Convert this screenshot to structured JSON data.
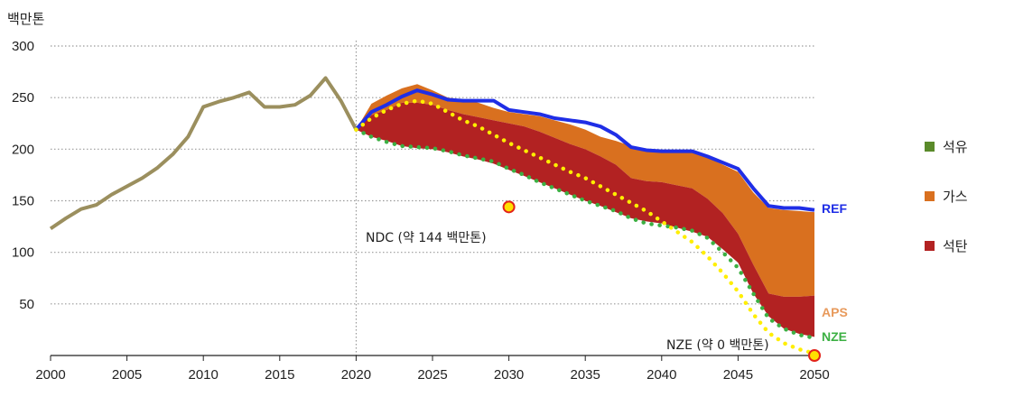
{
  "chart_data": {
    "type": "area",
    "ylabel": "백만톤",
    "xlim": [
      2000,
      2050
    ],
    "ylim": [
      0,
      300
    ],
    "x_ticks": [
      2000,
      2005,
      2010,
      2015,
      2020,
      2025,
      2030,
      2035,
      2040,
      2045,
      2050
    ],
    "y_ticks": [
      50,
      100,
      150,
      200,
      250,
      300
    ],
    "grid": "horizontal-dotted",
    "legend": {
      "placement": "right",
      "items": [
        {
          "name": "석유",
          "color": "#5a8a2a"
        },
        {
          "name": "가스",
          "color": "#d9701f"
        },
        {
          "name": "석탄",
          "color": "#b22222"
        }
      ]
    },
    "colors": {
      "historical": "#9b8f5e",
      "ref": "#1f2ee6",
      "aps": "#e89a5c",
      "nze": "#3cb043",
      "ndc_dots": "#ffee00",
      "gas": "#d9701f",
      "coal": "#b22222",
      "oil": "#5a8a2a"
    },
    "historical": {
      "x": [
        2000,
        2001,
        2002,
        2003,
        2004,
        2005,
        2006,
        2007,
        2008,
        2009,
        2010,
        2011,
        2012,
        2013,
        2014,
        2015,
        2016,
        2017,
        2018,
        2019,
        2020
      ],
      "y": [
        123,
        133,
        142,
        146,
        156,
        164,
        172,
        182,
        195,
        212,
        241,
        246,
        250,
        255,
        241,
        241,
        243,
        252,
        269,
        247,
        219
      ]
    },
    "ref": {
      "name": "REF",
      "x": [
        2020,
        2021,
        2022,
        2023,
        2024,
        2025,
        2026,
        2027,
        2028,
        2029,
        2030,
        2031,
        2032,
        2033,
        2034,
        2035,
        2036,
        2037,
        2038,
        2039,
        2040,
        2041,
        2042,
        2043,
        2044,
        2045,
        2046,
        2047,
        2048,
        2049,
        2050
      ],
      "y": [
        219,
        236,
        243,
        251,
        257,
        253,
        248,
        247,
        247,
        247,
        238,
        236,
        234,
        230,
        228,
        226,
        222,
        214,
        202,
        199,
        198,
        198,
        198,
        193,
        187,
        181,
        162,
        145,
        143,
        143,
        141
      ]
    },
    "stack_aps": {
      "x": [
        2020,
        2021,
        2022,
        2023,
        2024,
        2025,
        2026,
        2027,
        2028,
        2029,
        2030,
        2031,
        2032,
        2033,
        2034,
        2035,
        2036,
        2037,
        2038,
        2039,
        2040,
        2041,
        2042,
        2043,
        2044,
        2045,
        2046,
        2047,
        2048,
        2049,
        2050
      ],
      "oil": [
        219,
        212,
        208,
        203,
        201,
        200,
        197,
        193,
        190,
        186,
        180,
        174,
        168,
        162,
        156,
        150,
        145,
        139,
        133,
        130,
        128,
        124,
        120,
        115,
        103,
        90,
        60,
        38,
        26,
        21,
        18
      ],
      "coal": [
        219,
        233,
        238,
        245,
        245,
        243,
        238,
        234,
        231,
        228,
        225,
        222,
        217,
        211,
        205,
        200,
        193,
        185,
        172,
        169,
        168,
        165,
        162,
        152,
        138,
        118,
        88,
        60,
        57,
        57,
        58
      ],
      "gas": [
        219,
        244,
        252,
        259,
        263,
        257,
        250,
        248,
        245,
        240,
        236,
        234,
        232,
        228,
        224,
        219,
        212,
        208,
        203,
        200,
        198,
        198,
        197,
        192,
        185,
        178,
        158,
        143,
        141,
        140,
        139
      ]
    },
    "ndc_path": {
      "x": [
        2020,
        2021,
        2022,
        2023,
        2024,
        2025,
        2026,
        2027,
        2028,
        2029,
        2030,
        2031,
        2032,
        2033,
        2034,
        2035,
        2036,
        2037,
        2038,
        2039,
        2040,
        2041,
        2042,
        2043,
        2044,
        2045,
        2046,
        2047,
        2048,
        2049,
        2050
      ],
      "y": [
        219,
        230,
        238,
        244,
        247,
        244,
        236,
        228,
        222,
        214,
        206,
        199,
        192,
        185,
        178,
        172,
        164,
        156,
        148,
        140,
        130,
        120,
        110,
        96,
        80,
        62,
        40,
        22,
        12,
        6,
        2
      ]
    },
    "nze_path": {
      "x": [
        2020,
        2021,
        2022,
        2023,
        2024,
        2025,
        2026,
        2027,
        2028,
        2029,
        2030,
        2031,
        2032,
        2033,
        2034,
        2035,
        2036,
        2037,
        2038,
        2039,
        2040,
        2041,
        2042,
        2043,
        2044,
        2045,
        2046,
        2047,
        2048,
        2049,
        2050
      ],
      "y": [
        219,
        212,
        207,
        203,
        202,
        201,
        198,
        194,
        191,
        188,
        181,
        175,
        168,
        162,
        156,
        150,
        145,
        140,
        133,
        128,
        126,
        124,
        121,
        114,
        100,
        85,
        60,
        36,
        26,
        20,
        17
      ]
    },
    "ndc_target": {
      "x": 2030,
      "y": 144,
      "label": "NDC (약 144 백만톤)"
    },
    "nze_target": {
      "x": 2050,
      "y": 0,
      "label": "NZE (약 0 백만톤)"
    },
    "tags": {
      "ref": "REF",
      "aps": "APS",
      "nze": "NZE"
    },
    "divider_year": 2020
  }
}
